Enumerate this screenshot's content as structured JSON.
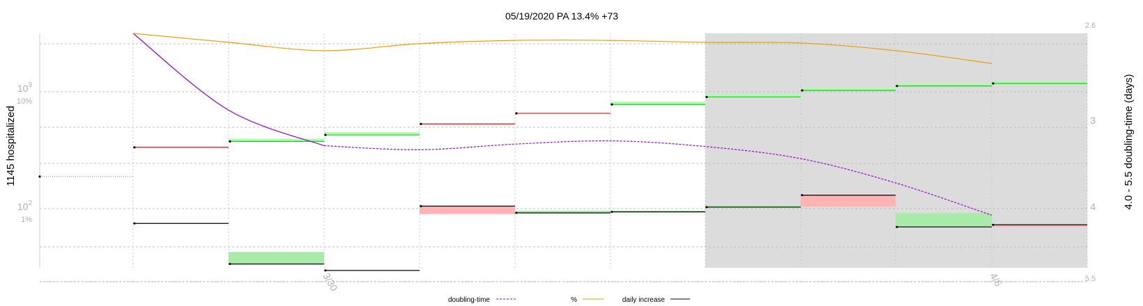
{
  "chart_data": {
    "type": "line",
    "title": "05/19/2020 PA 13.4% +73",
    "ylabel": "1145 hospitalized",
    "y2label": "4.0 - 5.5 doubling-time (days)",
    "y_scale": "log",
    "y_ticks": [
      {
        "value": 1000,
        "base": "10",
        "exp": "3",
        "pct": "10%"
      },
      {
        "value": 100,
        "base": "10",
        "exp": "2",
        "pct": "1%"
      }
    ],
    "y2_range": [
      2.6,
      5.5
    ],
    "y2_ticks": [
      "2.6",
      "3",
      "4",
      "5.5"
    ],
    "x_tick_labels": [
      "3/30",
      "4/6"
    ],
    "legend": [
      {
        "label": "doubling-time",
        "color": "#9400d3",
        "dashed": true
      },
      {
        "label": "%",
        "color": "#e69f00",
        "dashed": false
      },
      {
        "label": "daily increase",
        "color": "#000000",
        "dashed": false
      }
    ],
    "projection_shading": true,
    "hospitalized_steps": [
      {
        "value": 330,
        "color": "red"
      },
      {
        "value": 370,
        "color": "green"
      },
      {
        "value": 420,
        "color": "green"
      },
      {
        "value": 520,
        "color": "red"
      },
      {
        "value": 640,
        "color": "red"
      },
      {
        "value": 760,
        "color": "green"
      },
      {
        "value": 880,
        "color": "green"
      },
      {
        "value": 1000,
        "color": "green"
      },
      {
        "value": 1090,
        "color": "green"
      },
      {
        "value": 1145,
        "color": "green"
      }
    ],
    "daily_increase": [
      75,
      34,
      30,
      105,
      92,
      94,
      103,
      130,
      70,
      73
    ],
    "daily_increase_prev": [
      null,
      43,
      null,
      90,
      96,
      96,
      106,
      104,
      92,
      72
    ],
    "doubling_time_days": [
      2.6,
      3.55,
      3.99,
      4.04,
      3.97,
      3.93,
      4.0,
      4.15,
      4.45,
      4.85
    ],
    "percent_positive": [
      13.7,
      12.3,
      11.0,
      12.1,
      12.6,
      12.6,
      12.3,
      12.2,
      11.0,
      9.0
    ]
  }
}
